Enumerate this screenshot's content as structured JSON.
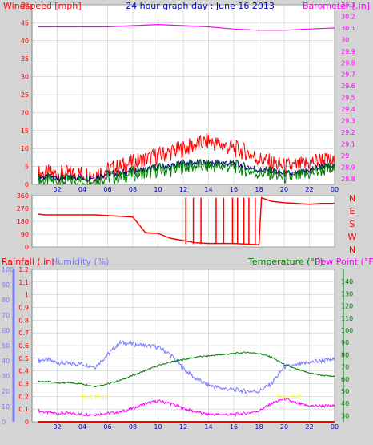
{
  "colors": {
    "background": "#d4d4d4",
    "plot_bg": "#ffffff",
    "grid": "#c0c0c0",
    "wind": "#ff0000",
    "wind_avg": "#008000",
    "wind_avg2": "#000080",
    "barometer": "#ff00ff",
    "direction": "#ff0000",
    "rain": "#ff0000",
    "humidity": "#7b7bff",
    "temperature": "#008000",
    "dewpoint": "#ff00ff",
    "sun_label": "#ffff00",
    "title": "#0000c0"
  },
  "header": {
    "left": "Windspeed [mph]",
    "center": "24 hour graph day : June 16 2013",
    "right": "Barometer [.in]"
  },
  "bottom_header": {
    "left_a": "Rainfall (.in)",
    "left_b": "Humidity (%)",
    "right_a": "Temperature (°F)",
    "right_b": "Dew Point (°F)"
  },
  "x_ticks": [
    "02",
    "04",
    "06",
    "08",
    "10",
    "12",
    "14",
    "16",
    "18",
    "20",
    "22",
    "00"
  ],
  "sun_labels": {
    "rise": "Sun Rise",
    "set": "Sun Set",
    "rise_hour": 5.0,
    "set_hour": 19.9
  },
  "chart_data": [
    {
      "type": "line",
      "name": "wind-barometer",
      "x_unit": "hour",
      "ylim_left": [
        0,
        50
      ],
      "ylim_right": [
        28.75,
        30.3
      ],
      "y_ticks_left": [
        "0",
        "5",
        "10",
        "15",
        "20",
        "25",
        "30",
        "35",
        "40",
        "45",
        "50"
      ],
      "y_ticks_right": [
        "28.8",
        "28.9",
        "29",
        "29.1",
        "29.2",
        "29.3",
        "29.4",
        "29.5",
        "29.6",
        "29.7",
        "29.8",
        "29.9",
        "30",
        "30.1",
        "30.2",
        "30.3"
      ],
      "series": [
        {
          "x": [
            0.5,
            1,
            2,
            3,
            4,
            5,
            6,
            7,
            8,
            9,
            10,
            11,
            12,
            13,
            14,
            15,
            16,
            17,
            18,
            19,
            20,
            21,
            22,
            23,
            24
          ],
          "values": [
            3,
            3,
            3,
            3,
            3,
            3,
            4,
            5,
            6,
            7,
            8,
            9,
            10,
            11,
            12,
            11,
            10,
            9,
            7,
            6,
            5,
            5,
            6,
            7,
            6
          ],
          "kind": "gust"
        },
        {
          "x": [
            0.5,
            1,
            2,
            3,
            4,
            5,
            6,
            7,
            8,
            9,
            10,
            11,
            12,
            13,
            14,
            15,
            16,
            17,
            18,
            19,
            20,
            21,
            22,
            23,
            24
          ],
          "values": [
            1,
            1,
            1,
            1,
            1,
            1,
            2,
            2,
            3,
            3,
            4,
            4,
            5,
            5,
            5,
            5,
            5,
            4,
            3,
            3,
            2,
            2,
            3,
            4,
            4
          ],
          "kind": "average"
        },
        {
          "x": [
            0.5,
            1,
            2,
            3,
            4,
            5,
            6,
            7,
            8,
            9,
            10,
            11,
            12,
            13,
            14,
            15,
            16,
            17,
            18,
            19,
            20,
            21,
            22,
            23,
            24
          ],
          "values": [
            2,
            2,
            2,
            2,
            2,
            2,
            3,
            3,
            4,
            4,
            5,
            5,
            6,
            6,
            6,
            6,
            6,
            5,
            4,
            4,
            3,
            3,
            4,
            5,
            5
          ],
          "kind": "average2"
        },
        {
          "x": [
            0.5,
            2,
            4,
            6,
            8,
            10,
            12,
            14,
            16,
            18,
            20,
            22,
            24
          ],
          "values": [
            30.11,
            30.11,
            30.11,
            30.11,
            30.12,
            30.13,
            30.12,
            30.11,
            30.09,
            30.08,
            30.08,
            30.09,
            30.1
          ],
          "kind": "barometer"
        }
      ]
    },
    {
      "type": "line",
      "name": "wind-direction",
      "x_unit": "hour",
      "ylim": [
        0,
        360
      ],
      "y_ticks": [
        "0",
        "90",
        "180",
        "270",
        "360"
      ],
      "compass": [
        "N",
        "W",
        "S",
        "E",
        "N"
      ],
      "series": [
        {
          "x": [
            0.5,
            1,
            2,
            3,
            4,
            5,
            6,
            7,
            8,
            9,
            10,
            11,
            12,
            13,
            14,
            15,
            16,
            17,
            18,
            18.2,
            19,
            20,
            21,
            22,
            23,
            24
          ],
          "values": [
            230,
            225,
            225,
            225,
            225,
            225,
            220,
            215,
            210,
            100,
            95,
            60,
            45,
            30,
            25,
            25,
            25,
            20,
            15,
            345,
            320,
            310,
            305,
            300,
            305,
            305
          ]
        }
      ]
    },
    {
      "type": "line",
      "name": "rain-humidity-temperature",
      "x_unit": "hour",
      "ylim_rain": [
        0,
        1.2
      ],
      "ylim_humidity": [
        0,
        100
      ],
      "ylim_temp": [
        25,
        150
      ],
      "y_ticks_rain": [
        "0",
        "0.1",
        "0.2",
        "0.3",
        "0.4",
        "0.5",
        "0.6",
        "0.7",
        "0.8",
        "0.9",
        "1",
        "1.1",
        "1.2"
      ],
      "y_ticks_humidity": [
        "0",
        "10",
        "20",
        "30",
        "40",
        "50",
        "60",
        "70",
        "80",
        "90",
        "100"
      ],
      "y_ticks_temp": [
        "30",
        "40",
        "50",
        "60",
        "70",
        "80",
        "90",
        "100",
        "110",
        "120",
        "130",
        "140"
      ],
      "series": [
        {
          "name": "Humidity",
          "x": [
            0.5,
            1,
            2,
            3,
            4,
            5,
            6,
            7,
            8,
            9,
            10,
            11,
            12,
            13,
            14,
            15,
            16,
            17,
            18,
            19,
            20,
            21,
            22,
            23,
            24
          ],
          "values": [
            40,
            41,
            39,
            38,
            38,
            36,
            44,
            52,
            51,
            50,
            49,
            44,
            35,
            28,
            24,
            22,
            21,
            20,
            20,
            25,
            36,
            37,
            39,
            40,
            41
          ]
        },
        {
          "name": "Temperature",
          "x": [
            0.5,
            1,
            2,
            3,
            4,
            5,
            6,
            7,
            8,
            9,
            10,
            11,
            12,
            13,
            14,
            15,
            16,
            17,
            18,
            19,
            20,
            21,
            22,
            23,
            24
          ],
          "values": [
            58,
            58,
            57,
            57,
            56,
            54,
            56,
            59,
            63,
            67,
            71,
            74,
            76,
            78,
            79,
            80,
            81,
            82,
            81,
            78,
            72,
            68,
            65,
            63,
            62
          ]
        },
        {
          "name": "Dew Point",
          "x": [
            0.5,
            1,
            2,
            3,
            4,
            5,
            6,
            7,
            8,
            9,
            10,
            11,
            12,
            13,
            14,
            15,
            16,
            17,
            18,
            19,
            20,
            21,
            22,
            23,
            24
          ],
          "values": [
            34,
            33,
            32,
            32,
            31,
            31,
            32,
            33,
            36,
            40,
            42,
            40,
            36,
            33,
            31,
            31,
            31,
            32,
            34,
            40,
            44,
            40,
            38,
            38,
            38
          ]
        },
        {
          "name": "Rainfall",
          "x": [
            0.5,
            24
          ],
          "values": [
            0,
            0
          ]
        }
      ]
    }
  ]
}
